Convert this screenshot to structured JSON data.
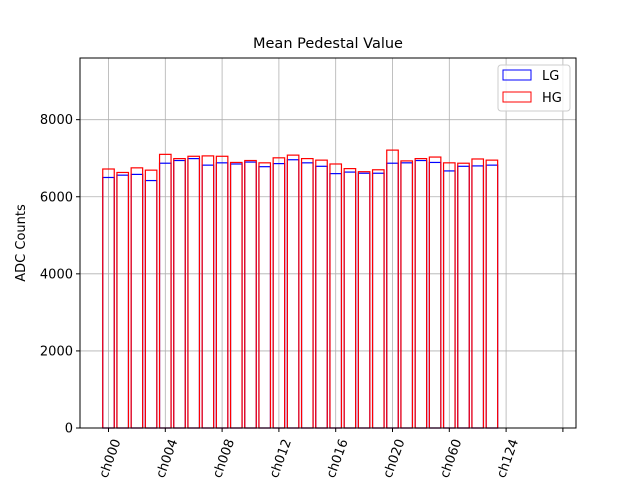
{
  "chart_data": {
    "type": "bar",
    "title": "Mean Pedestal Value",
    "xlabel": "",
    "ylabel": "ADC Counts",
    "ylim": [
      0,
      9600
    ],
    "yticks": [
      0,
      2000,
      4000,
      6000,
      8000
    ],
    "ytick_labels": [
      "0",
      "2000",
      "4000",
      "6000",
      "8000"
    ],
    "xtick_labels": [
      "ch000",
      "ch004",
      "ch008",
      "ch012",
      "ch016",
      "ch020",
      "ch060",
      "ch124"
    ],
    "xtick_label_rotation_deg": 70,
    "grid": true,
    "legend_position": "upper right",
    "bar_style": "outline",
    "series": [
      {
        "name": "LG",
        "color": "#0000ff",
        "values": [
          6500,
          6560,
          6580,
          6420,
          6870,
          6940,
          6990,
          6820,
          6880,
          6850,
          6900,
          6780,
          6860,
          6960,
          6880,
          6790,
          6600,
          6640,
          6610,
          6610,
          6870,
          6880,
          6940,
          6890,
          6670,
          6790,
          6800,
          6820,
          0,
          0,
          0,
          0
        ]
      },
      {
        "name": "HG",
        "color": "#ff0000",
        "values": [
          6720,
          6630,
          6750,
          6690,
          7100,
          6990,
          7050,
          7060,
          7050,
          6890,
          6940,
          6880,
          7010,
          7080,
          6990,
          6950,
          6850,
          6730,
          6650,
          6700,
          7210,
          6930,
          6990,
          7030,
          6880,
          6870,
          6980,
          6950,
          0,
          0,
          0,
          0
        ]
      }
    ]
  }
}
